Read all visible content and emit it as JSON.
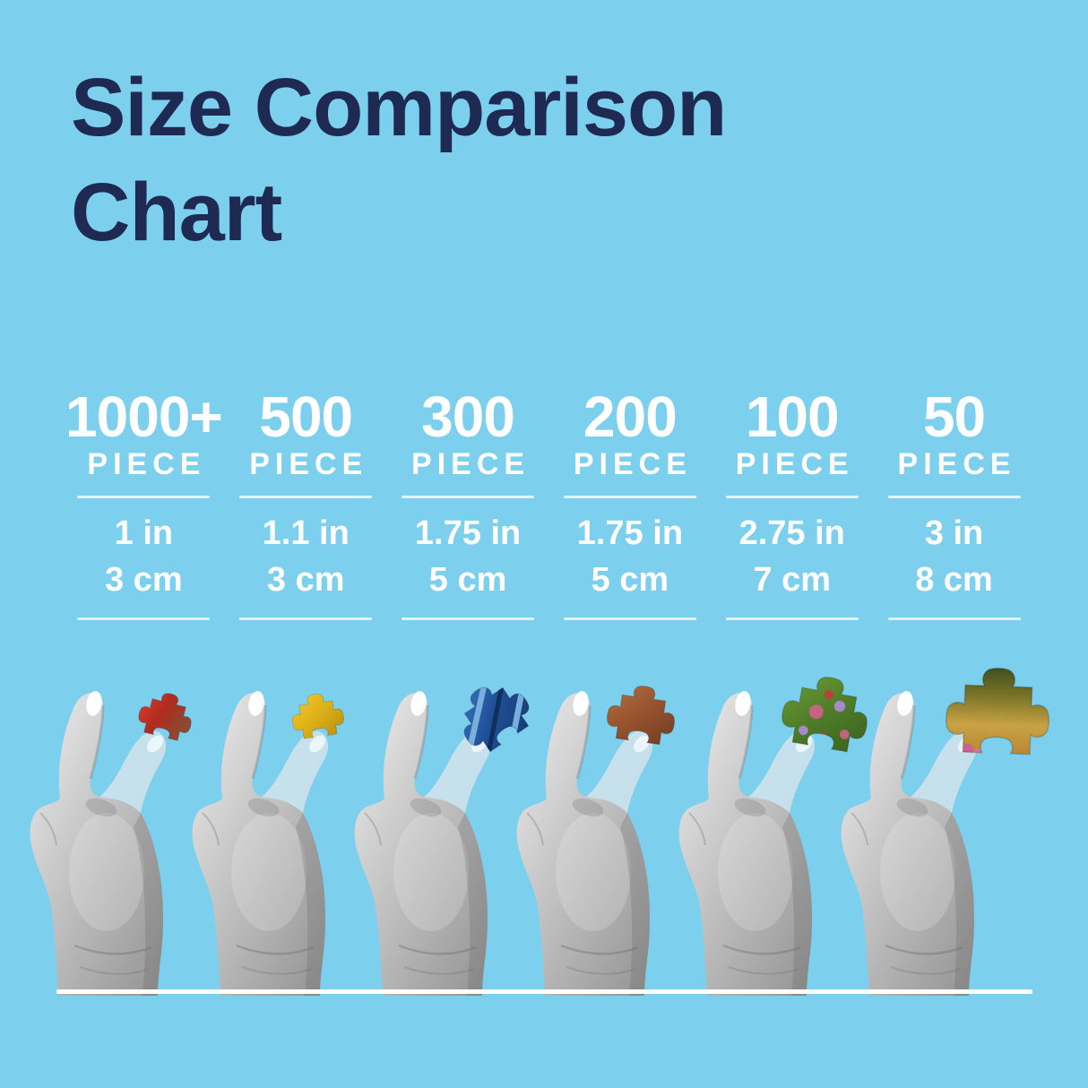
{
  "page": {
    "background_color": "#7cd0ee",
    "title_color": "#1e2a52",
    "text_color": "#ffffff",
    "baseline_color": "#ffffff"
  },
  "title": {
    "line1": "Size Comparison",
    "line2": "Chart"
  },
  "chart_data": {
    "type": "table",
    "title": "Size Comparison Chart",
    "categories": [
      "1000+ piece",
      "500 piece",
      "300 piece",
      "200 piece",
      "100 piece",
      "50 piece"
    ],
    "series": [
      {
        "name": "Piece size (inches)",
        "values": [
          1,
          1.1,
          1.75,
          1.75,
          2.75,
          3
        ]
      },
      {
        "name": "Piece size (cm)",
        "values": [
          3,
          3,
          5,
          5,
          7,
          8
        ]
      }
    ],
    "notes": "Six grayscale hands each pinch a jigsaw puzzle piece; piece size grows as piece count decreases"
  },
  "columns": [
    {
      "count": "1000+",
      "unit": "PIECE",
      "inches": "1 in",
      "cm": "3 cm",
      "piece": {
        "name": "red-brown",
        "colors": [
          "#d8402c",
          "#b02a20",
          "#8a4a33"
        ],
        "pattern": "none",
        "accent_colors": []
      }
    },
    {
      "count": "500",
      "unit": "PIECE",
      "inches": "1.1 in",
      "cm": "3 cm",
      "piece": {
        "name": "golden-yellow",
        "colors": [
          "#f2ca2a",
          "#ddb118",
          "#b98e0e"
        ],
        "pattern": "none",
        "accent_colors": []
      }
    },
    {
      "count": "300",
      "unit": "PIECE",
      "inches": "1.75 in",
      "cm": "5 cm",
      "piece": {
        "name": "blue-striped",
        "colors": [
          "#3f7fc4",
          "#1f4e96",
          "#163a6f"
        ],
        "pattern": "stripes",
        "accent_colors": [
          "#78b0dd",
          "#102f5c"
        ]
      }
    },
    {
      "count": "200",
      "unit": "PIECE",
      "inches": "1.75 in",
      "cm": "5 cm",
      "piece": {
        "name": "rust-brown",
        "colors": [
          "#b5713f",
          "#96522e",
          "#6f3d22"
        ],
        "pattern": "none",
        "accent_colors": []
      }
    },
    {
      "count": "100",
      "unit": "PIECE",
      "inches": "2.75 in",
      "cm": "7 cm",
      "piece": {
        "name": "green-floral",
        "colors": [
          "#6f9f37",
          "#4e7d28",
          "#3c611f"
        ],
        "pattern": "dots5",
        "accent_colors": [
          "#d35f8d",
          "#b389d9",
          "#c23b3b"
        ]
      }
    },
    {
      "count": "50",
      "unit": "PIECE",
      "inches": "3 in",
      "cm": "8 cm",
      "piece": {
        "name": "meadow-landscape",
        "colors": [
          "#41511f",
          "#7c7428",
          "#c9a244",
          "#b98a33"
        ],
        "pattern": "dots6",
        "accent_colors": [
          "#d873a8",
          "#c95f9b"
        ]
      }
    }
  ]
}
